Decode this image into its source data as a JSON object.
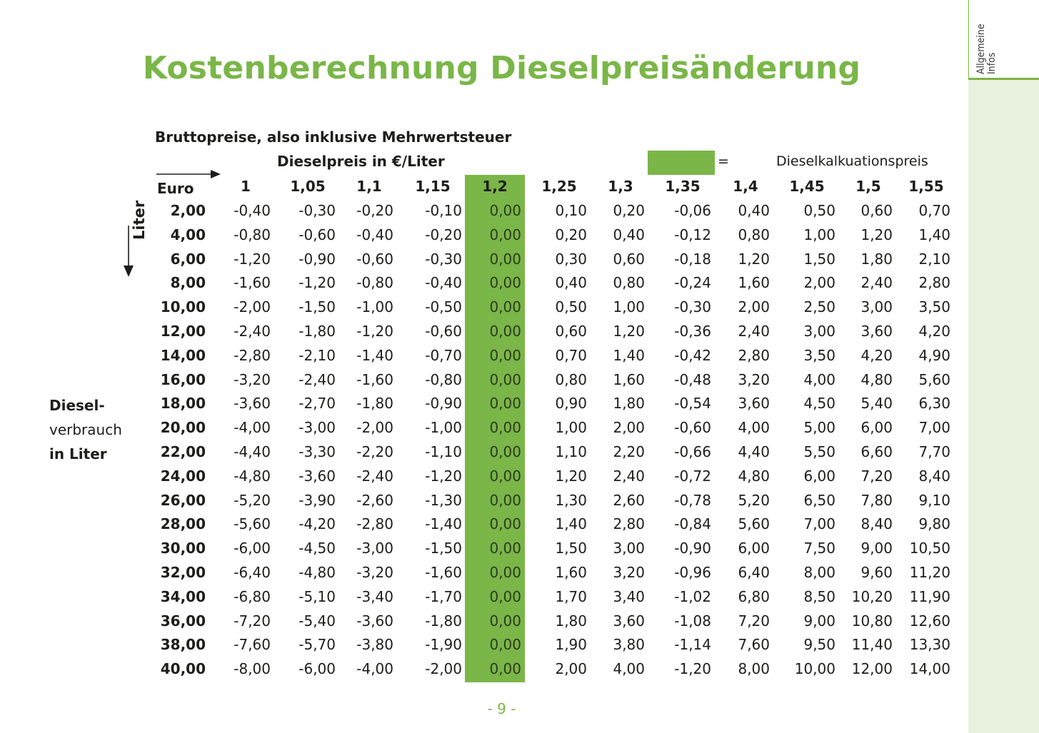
{
  "sidebar": {
    "tab_line1": "Allgemeine",
    "tab_line2": "Infos"
  },
  "title": "Kostenberechnung Dieselpreisänderung",
  "subtitle": "Bruttopreise, also inklusive Mehrwertsteuer",
  "price_axis_label": "Dieselpreis in €/Liter",
  "legend": {
    "equals": "=",
    "text": "Dieselkalkuationspreis",
    "color": "#7ab648"
  },
  "row_axis_label": "Liter",
  "diesel_label": [
    "Diesel-",
    "verbrauch",
    "in Liter"
  ],
  "table": {
    "corner_label": "Euro",
    "highlight_color": "#7ab648",
    "highlight_column": "1,2",
    "columns": [
      "1",
      "1,05",
      "1,1",
      "1,15",
      "1,2",
      "1,25",
      "1,3",
      "1,35",
      "1,4",
      "1,45",
      "1,5",
      "1,55"
    ],
    "rows": [
      {
        "label": "2,00",
        "values": [
          "-0,40",
          "-0,30",
          "-0,20",
          "-0,10",
          "0,00",
          "0,10",
          "0,20",
          "-0,06",
          "0,40",
          "0,50",
          "0,60",
          "0,70"
        ]
      },
      {
        "label": "4,00",
        "values": [
          "-0,80",
          "-0,60",
          "-0,40",
          "-0,20",
          "0,00",
          "0,20",
          "0,40",
          "-0,12",
          "0,80",
          "1,00",
          "1,20",
          "1,40"
        ]
      },
      {
        "label": "6,00",
        "values": [
          "-1,20",
          "-0,90",
          "-0,60",
          "-0,30",
          "0,00",
          "0,30",
          "0,60",
          "-0,18",
          "1,20",
          "1,50",
          "1,80",
          "2,10"
        ]
      },
      {
        "label": "8,00",
        "values": [
          "-1,60",
          "-1,20",
          "-0,80",
          "-0,40",
          "0,00",
          "0,40",
          "0,80",
          "-0,24",
          "1,60",
          "2,00",
          "2,40",
          "2,80"
        ]
      },
      {
        "label": "10,00",
        "values": [
          "-2,00",
          "-1,50",
          "-1,00",
          "-0,50",
          "0,00",
          "0,50",
          "1,00",
          "-0,30",
          "2,00",
          "2,50",
          "3,00",
          "3,50"
        ]
      },
      {
        "label": "12,00",
        "values": [
          "-2,40",
          "-1,80",
          "-1,20",
          "-0,60",
          "0,00",
          "0,60",
          "1,20",
          "-0,36",
          "2,40",
          "3,00",
          "3,60",
          "4,20"
        ]
      },
      {
        "label": "14,00",
        "values": [
          "-2,80",
          "-2,10",
          "-1,40",
          "-0,70",
          "0,00",
          "0,70",
          "1,40",
          "-0,42",
          "2,80",
          "3,50",
          "4,20",
          "4,90"
        ]
      },
      {
        "label": "16,00",
        "values": [
          "-3,20",
          "-2,40",
          "-1,60",
          "-0,80",
          "0,00",
          "0,80",
          "1,60",
          "-0,48",
          "3,20",
          "4,00",
          "4,80",
          "5,60"
        ]
      },
      {
        "label": "18,00",
        "values": [
          "-3,60",
          "-2,70",
          "-1,80",
          "-0,90",
          "0,00",
          "0,90",
          "1,80",
          "-0,54",
          "3,60",
          "4,50",
          "5,40",
          "6,30"
        ]
      },
      {
        "label": "20,00",
        "values": [
          "-4,00",
          "-3,00",
          "-2,00",
          "-1,00",
          "0,00",
          "1,00",
          "2,00",
          "-0,60",
          "4,00",
          "5,00",
          "6,00",
          "7,00"
        ]
      },
      {
        "label": "22,00",
        "values": [
          "-4,40",
          "-3,30",
          "-2,20",
          "-1,10",
          "0,00",
          "1,10",
          "2,20",
          "-0,66",
          "4,40",
          "5,50",
          "6,60",
          "7,70"
        ]
      },
      {
        "label": "24,00",
        "values": [
          "-4,80",
          "-3,60",
          "-2,40",
          "-1,20",
          "0,00",
          "1,20",
          "2,40",
          "-0,72",
          "4,80",
          "6,00",
          "7,20",
          "8,40"
        ]
      },
      {
        "label": "26,00",
        "values": [
          "-5,20",
          "-3,90",
          "-2,60",
          "-1,30",
          "0,00",
          "1,30",
          "2,60",
          "-0,78",
          "5,20",
          "6,50",
          "7,80",
          "9,10"
        ]
      },
      {
        "label": "28,00",
        "values": [
          "-5,60",
          "-4,20",
          "-2,80",
          "-1,40",
          "0,00",
          "1,40",
          "2,80",
          "-0,84",
          "5,60",
          "7,00",
          "8,40",
          "9,80"
        ]
      },
      {
        "label": "30,00",
        "values": [
          "-6,00",
          "-4,50",
          "-3,00",
          "-1,50",
          "0,00",
          "1,50",
          "3,00",
          "-0,90",
          "6,00",
          "7,50",
          "9,00",
          "10,50"
        ]
      },
      {
        "label": "32,00",
        "values": [
          "-6,40",
          "-4,80",
          "-3,20",
          "-1,60",
          "0,00",
          "1,60",
          "3,20",
          "-0,96",
          "6,40",
          "8,00",
          "9,60",
          "11,20"
        ]
      },
      {
        "label": "34,00",
        "values": [
          "-6,80",
          "-5,10",
          "-3,40",
          "-1,70",
          "0,00",
          "1,70",
          "3,40",
          "-1,02",
          "6,80",
          "8,50",
          "10,20",
          "11,90"
        ]
      },
      {
        "label": "36,00",
        "values": [
          "-7,20",
          "-5,40",
          "-3,60",
          "-1,80",
          "0,00",
          "1,80",
          "3,60",
          "-1,08",
          "7,20",
          "9,00",
          "10,80",
          "12,60"
        ]
      },
      {
        "label": "38,00",
        "values": [
          "-7,60",
          "-5,70",
          "-3,80",
          "-1,90",
          "0,00",
          "1,90",
          "3,80",
          "-1,14",
          "7,60",
          "9,50",
          "11,40",
          "13,30"
        ]
      },
      {
        "label": "40,00",
        "values": [
          "-8,00",
          "-6,00",
          "-4,00",
          "-2,00",
          "0,00",
          "2,00",
          "4,00",
          "-1,20",
          "8,00",
          "10,00",
          "12,00",
          "14,00"
        ]
      }
    ]
  },
  "page_number": "- 9 -"
}
